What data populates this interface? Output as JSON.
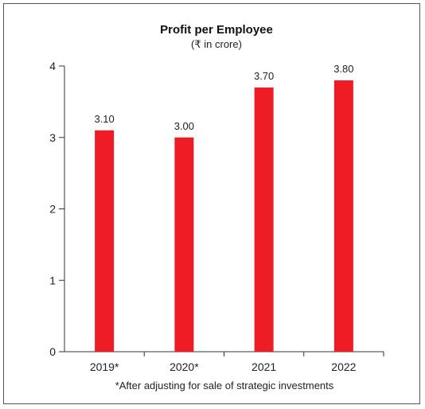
{
  "chart_data": {
    "type": "bar",
    "title": "Profit per Employee",
    "subtitle": "(₹ in crore)",
    "categories": [
      "2019*",
      "2020*",
      "2021",
      "2022"
    ],
    "values": [
      3.1,
      3.0,
      3.7,
      3.8
    ],
    "value_labels": [
      "3.10",
      "3.00",
      "3.70",
      "3.80"
    ],
    "ylim": [
      0,
      4
    ],
    "yticks": [
      "0",
      "1",
      "2",
      "3",
      "4"
    ],
    "xlabel": "",
    "ylabel": "",
    "grid": false,
    "bar_color": "#ee1c25",
    "footnote": "*After adjusting for sale of strategic investments"
  }
}
